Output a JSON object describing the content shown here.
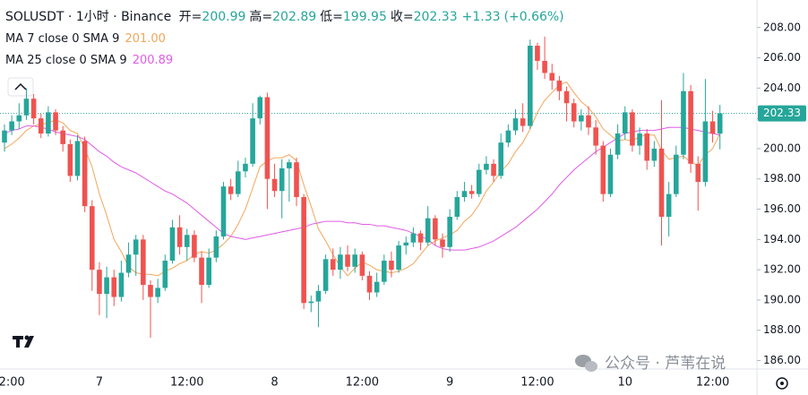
{
  "chart_data": {
    "type": "candlestick",
    "header": {
      "symbol": "SOLUSDT · 1小时 · Binance",
      "ohlc": [
        {
          "label": "开=",
          "value": 200.99
        },
        {
          "label": "高=",
          "value": 202.89
        },
        {
          "label": "低=",
          "value": 199.95
        },
        {
          "label": "收=",
          "value": 202.33
        }
      ],
      "change": "+1.33",
      "change_pct": "(+0.66%)"
    },
    "categories": [
      null,
      "2:00",
      null,
      null,
      null,
      null,
      null,
      null,
      null,
      null,
      null,
      null,
      null,
      "7",
      null,
      null,
      null,
      null,
      null,
      null,
      null,
      null,
      null,
      null,
      null,
      "12:00",
      null,
      null,
      null,
      null,
      null,
      null,
      null,
      null,
      null,
      null,
      null,
      "8",
      null,
      null,
      null,
      null,
      null,
      null,
      null,
      null,
      null,
      null,
      null,
      "12:00",
      null,
      null,
      null,
      null,
      null,
      null,
      null,
      null,
      null,
      null,
      null,
      "9",
      null,
      null,
      null,
      null,
      null,
      null,
      null,
      null,
      null,
      null,
      null,
      "12:00",
      null,
      null,
      null,
      null,
      null,
      null,
      null,
      null,
      null,
      null,
      null,
      "10",
      null,
      null,
      null,
      null,
      null,
      null,
      null,
      null,
      null,
      null,
      null,
      "12:00",
      null
    ],
    "open": [
      200.4,
      201.2,
      201.8,
      202.2,
      203.3,
      202.0,
      201.0,
      202.4,
      201.2,
      200.3,
      198.2,
      200.5,
      196.2,
      192.0,
      190.4,
      191.5,
      190.2,
      191.8,
      193.0,
      194.0,
      191.0,
      190.2,
      190.8,
      192.6,
      194.8,
      193.5,
      194.3,
      192.8,
      191.0,
      192.8,
      194.2,
      197.5,
      197.0,
      198.5,
      199.0,
      202.0,
      203.4,
      198.0,
      197.2,
      198.7,
      199.1,
      196.8,
      189.8,
      189.9,
      190.6,
      192.7,
      192.0,
      193.0,
      192.2,
      193.0,
      191.6,
      190.5,
      191.2,
      192.6,
      192.0,
      193.6,
      193.8,
      194.4,
      193.8,
      195.4,
      194.0,
      193.5,
      195.5,
      196.8,
      197.2,
      197.0,
      198.6,
      199.0,
      198.2,
      200.4,
      201.2,
      202.0,
      201.5,
      206.8,
      205.8,
      205.0,
      204.5,
      203.8,
      203.0,
      201.8,
      202.2,
      201.4,
      200.2,
      197.0,
      199.6,
      201.0,
      202.4,
      200.2,
      201.0,
      199.2,
      200.0,
      195.5,
      197.0,
      199.6,
      203.8,
      199.0,
      197.8,
      201.8,
      200.99
    ],
    "high": [
      201.6,
      202.2,
      203.0,
      204.0,
      203.6,
      202.3,
      202.8,
      202.6,
      201.5,
      200.6,
      200.9,
      200.8,
      196.6,
      192.5,
      192.2,
      192.0,
      192.6,
      193.8,
      194.3,
      194.3,
      191.3,
      191.4,
      193.0,
      195.3,
      195.6,
      194.7,
      194.6,
      193.2,
      193.4,
      194.6,
      197.8,
      198.0,
      199.2,
      199.4,
      203.0,
      203.5,
      203.7,
      199.0,
      199.3,
      199.3,
      199.4,
      197.0,
      190.3,
      191.0,
      193.0,
      193.4,
      193.5,
      193.6,
      193.4,
      193.2,
      191.9,
      191.8,
      193.0,
      193.2,
      193.9,
      194.2,
      194.8,
      194.6,
      196.2,
      195.6,
      194.4,
      196.0,
      197.2,
      197.8,
      197.6,
      199.0,
      199.5,
      199.3,
      201.0,
      201.6,
      202.6,
      203.0,
      207.2,
      207.0,
      207.4,
      205.6,
      204.8,
      204.1,
      203.3,
      202.6,
      202.8,
      201.9,
      200.5,
      200.0,
      201.6,
      202.8,
      202.6,
      201.4,
      201.3,
      200.5,
      203.2,
      197.8,
      200.2,
      205.0,
      204.2,
      199.5,
      204.6,
      202.5,
      202.89
    ],
    "low": [
      199.8,
      200.9,
      201.3,
      201.9,
      201.6,
      200.7,
      200.8,
      200.9,
      199.8,
      197.8,
      197.9,
      195.8,
      190.6,
      189.0,
      188.8,
      189.6,
      189.9,
      191.5,
      191.6,
      190.0,
      187.5,
      189.8,
      190.6,
      192.4,
      193.0,
      192.6,
      192.5,
      189.8,
      190.8,
      192.5,
      194.0,
      196.6,
      196.8,
      198.1,
      198.8,
      201.6,
      196.0,
      196.8,
      195.4,
      196.5,
      196.2,
      189.4,
      189.2,
      188.2,
      190.4,
      191.6,
      191.4,
      191.9,
      191.8,
      191.3,
      190.0,
      190.2,
      191.0,
      191.5,
      191.8,
      193.0,
      193.5,
      193.3,
      193.6,
      193.6,
      192.8,
      193.2,
      195.3,
      196.5,
      196.7,
      196.8,
      198.3,
      197.8,
      198.0,
      200.1,
      200.9,
      201.1,
      201.3,
      205.2,
      204.6,
      203.9,
      203.2,
      201.8,
      201.4,
      201.2,
      200.9,
      199.6,
      196.5,
      196.8,
      199.3,
      200.6,
      199.8,
      199.6,
      198.6,
      198.8,
      193.6,
      194.2,
      196.8,
      199.3,
      198.4,
      195.9,
      197.5,
      200.4,
      199.95
    ],
    "close": [
      201.2,
      201.8,
      202.2,
      203.3,
      202.0,
      201.0,
      202.4,
      201.2,
      200.3,
      198.2,
      200.5,
      196.2,
      192.0,
      190.4,
      191.5,
      190.2,
      191.8,
      193.0,
      194.0,
      191.0,
      190.2,
      190.8,
      192.6,
      194.8,
      193.5,
      194.3,
      192.8,
      191.0,
      192.8,
      194.2,
      197.5,
      197.0,
      198.5,
      199.0,
      202.0,
      203.4,
      198.0,
      197.2,
      198.7,
      199.1,
      196.8,
      189.8,
      189.9,
      190.6,
      192.7,
      192.0,
      193.0,
      192.2,
      193.0,
      191.6,
      190.5,
      191.2,
      192.6,
      192.0,
      193.6,
      193.8,
      194.4,
      193.8,
      195.4,
      194.0,
      193.5,
      195.5,
      196.8,
      197.2,
      197.0,
      198.6,
      199.0,
      198.2,
      200.4,
      201.2,
      202.0,
      201.5,
      206.8,
      205.8,
      205.0,
      204.5,
      203.8,
      203.0,
      201.8,
      202.2,
      201.4,
      200.2,
      197.0,
      199.6,
      201.0,
      202.4,
      200.2,
      201.0,
      199.2,
      200.0,
      195.5,
      197.0,
      199.6,
      203.8,
      199.0,
      197.8,
      201.8,
      200.99,
      202.33
    ],
    "up_color": "#26a69a",
    "down_color": "#ef5350",
    "overlays": [
      {
        "name": "MA 7 close 0 SMA 9",
        "color": "#f2a65a",
        "value_label": "201.00",
        "values": [
          200.0,
          200.3,
          200.7,
          201.2,
          201.5,
          201.6,
          201.7,
          201.9,
          201.7,
          201.2,
          201.0,
          200.0,
          198.8,
          197.0,
          195.6,
          194.0,
          193.2,
          192.2,
          191.8,
          191.7,
          191.7,
          191.6,
          191.9,
          192.1,
          192.4,
          192.6,
          193.0,
          193.2,
          193.1,
          193.3,
          193.7,
          194.2,
          195.0,
          196.0,
          197.4,
          198.8,
          199.2,
          199.4,
          199.4,
          199.6,
          199.2,
          197.6,
          196.2,
          194.7,
          193.9,
          193.0,
          192.2,
          191.6,
          192.1,
          192.5,
          192.3,
          192.0,
          191.9,
          191.8,
          191.9,
          192.1,
          192.4,
          193.0,
          193.6,
          193.9,
          194.1,
          194.3,
          194.6,
          195.2,
          195.6,
          196.3,
          197.2,
          197.8,
          198.5,
          199.0,
          199.8,
          200.4,
          201.3,
          202.4,
          203.2,
          203.7,
          204.2,
          204.4,
          203.7,
          203.1,
          202.7,
          202.1,
          201.3,
          200.9,
          200.5,
          200.6,
          200.5,
          200.8,
          200.9,
          200.9,
          199.9,
          199.3,
          199.4,
          199.5,
          199.1,
          198.9,
          199.6,
          200.0,
          201.0
        ]
      },
      {
        "name": "MA 25 close 0 SMA 9",
        "color": "#e05be8",
        "value_label": "200.89",
        "values": [
          201.0,
          201.2,
          201.3,
          201.5,
          201.5,
          201.4,
          201.3,
          201.1,
          201.0,
          200.9,
          200.8,
          200.6,
          200.2,
          199.8,
          199.5,
          199.1,
          198.8,
          198.6,
          198.4,
          198.1,
          197.8,
          197.5,
          197.2,
          197.0,
          196.7,
          196.4,
          196.0,
          195.6,
          195.2,
          194.8,
          194.4,
          194.2,
          194.1,
          194.0,
          194.1,
          194.2,
          194.3,
          194.4,
          194.5,
          194.6,
          194.7,
          194.8,
          195.0,
          195.1,
          195.2,
          195.2,
          195.2,
          195.1,
          195.1,
          195.0,
          195.0,
          194.9,
          194.9,
          194.8,
          194.7,
          194.6,
          194.4,
          194.2,
          194.0,
          193.6,
          193.4,
          193.3,
          193.3,
          193.3,
          193.4,
          193.5,
          193.7,
          193.9,
          194.2,
          194.5,
          194.8,
          195.2,
          195.6,
          196.0,
          196.5,
          197.0,
          197.6,
          198.1,
          198.6,
          199.0,
          199.4,
          199.8,
          200.1,
          200.4,
          200.7,
          201.0,
          201.1,
          201.2,
          201.2,
          201.2,
          201.3,
          201.4,
          201.4,
          201.4,
          201.3,
          201.2,
          201.1,
          201.0,
          200.89
        ]
      }
    ],
    "last_price": 202.33,
    "ylim": [
      185.44,
      209.82
    ],
    "yticks": [
      {
        "value": 186,
        "label": "186.00"
      },
      {
        "value": 188,
        "label": "188.00"
      },
      {
        "value": 190,
        "label": "190.00"
      },
      {
        "value": 192,
        "label": "192.00"
      },
      {
        "value": 194,
        "label": "194.00"
      },
      {
        "value": 196,
        "label": "196.00"
      },
      {
        "value": 198,
        "label": "198.00"
      },
      {
        "value": 200,
        "label": "200.00"
      },
      {
        "value": 202,
        "label": "202.00"
      },
      {
        "value": 204,
        "label": "204.00"
      },
      {
        "value": 206,
        "label": "206.00"
      },
      {
        "value": 208,
        "label": "208.00"
      }
    ],
    "grid": false,
    "watermark": "公众号 · 芦苇在说"
  }
}
